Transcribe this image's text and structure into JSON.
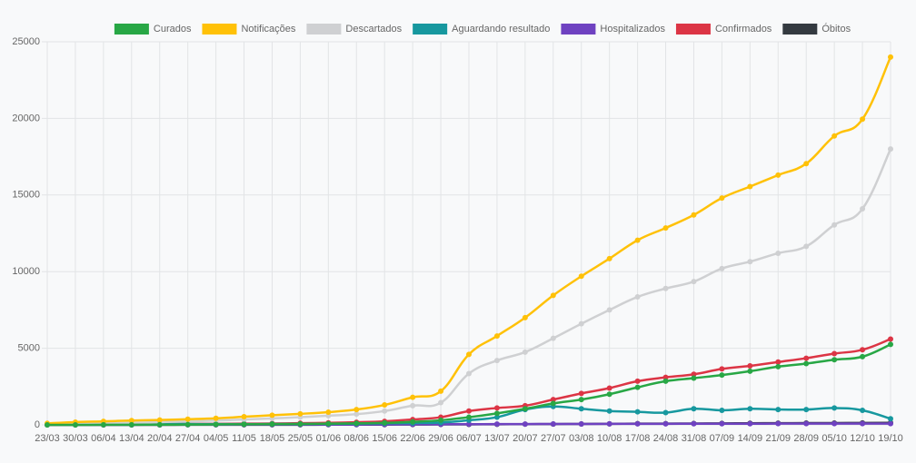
{
  "chart_data": {
    "type": "line",
    "categories": [
      "23/03",
      "30/03",
      "06/04",
      "13/04",
      "20/04",
      "27/04",
      "04/05",
      "11/05",
      "18/05",
      "25/05",
      "01/06",
      "08/06",
      "15/06",
      "22/06",
      "29/06",
      "06/07",
      "13/07",
      "20/07",
      "27/07",
      "03/08",
      "10/08",
      "17/08",
      "24/08",
      "31/08",
      "07/09",
      "14/09",
      "21/09",
      "28/09",
      "05/10",
      "12/10",
      "19/10"
    ],
    "series": [
      {
        "name": "Curados",
        "color": "#28a745",
        "values": [
          0,
          0,
          5,
          10,
          15,
          20,
          30,
          40,
          50,
          60,
          80,
          100,
          130,
          200,
          300,
          500,
          750,
          1050,
          1400,
          1650,
          2000,
          2450,
          2850,
          3050,
          3250,
          3500,
          3800,
          4000,
          4250,
          4450,
          5250
        ]
      },
      {
        "name": "Notificações",
        "color": "#ffc107",
        "values": [
          100,
          180,
          230,
          280,
          320,
          370,
          430,
          530,
          630,
          720,
          830,
          1000,
          1300,
          1800,
          2200,
          4600,
          5800,
          7000,
          8450,
          9700,
          10850,
          12050,
          12850,
          13700,
          14800,
          15550,
          16300,
          17050,
          18850,
          19950,
          24000
        ]
      },
      {
        "name": "Descartados",
        "color": "#cfd0d2",
        "values": [
          50,
          80,
          100,
          130,
          180,
          230,
          280,
          350,
          420,
          500,
          600,
          700,
          900,
          1250,
          1450,
          3350,
          4200,
          4750,
          5650,
          6600,
          7500,
          8350,
          8900,
          9350,
          10200,
          10650,
          11200,
          11650,
          13050,
          14100,
          18000
        ]
      },
      {
        "name": "Aguardando resultado",
        "color": "#17989f",
        "values": [
          20,
          30,
          40,
          50,
          60,
          60,
          50,
          50,
          60,
          60,
          70,
          80,
          100,
          120,
          150,
          300,
          500,
          1000,
          1200,
          1050,
          900,
          850,
          800,
          1050,
          950,
          1050,
          1000,
          1000,
          1100,
          950,
          400
        ]
      },
      {
        "name": "Hospitalizados",
        "color": "#6f42c1",
        "values": [
          5,
          5,
          10,
          10,
          15,
          15,
          15,
          20,
          20,
          20,
          25,
          25,
          30,
          35,
          40,
          45,
          50,
          55,
          60,
          60,
          65,
          70,
          70,
          75,
          75,
          75,
          80,
          80,
          80,
          80,
          80
        ]
      },
      {
        "name": "Confirmados",
        "color": "#dc3545",
        "values": [
          10,
          20,
          30,
          40,
          50,
          60,
          70,
          80,
          90,
          110,
          130,
          170,
          230,
          350,
          500,
          900,
          1100,
          1250,
          1650,
          2050,
          2400,
          2850,
          3100,
          3300,
          3650,
          3850,
          4100,
          4350,
          4650,
          4900,
          5600
        ]
      },
      {
        "name": "Óbitos",
        "color": "#343a40",
        "values": [
          0,
          0,
          1,
          2,
          3,
          4,
          5,
          6,
          8,
          10,
          12,
          15,
          18,
          22,
          26,
          32,
          40,
          48,
          55,
          62,
          70,
          78,
          85,
          92,
          98,
          105,
          110,
          115,
          120,
          125,
          130
        ]
      }
    ],
    "ylim": [
      0,
      25000
    ],
    "yticks": [
      0,
      5000,
      10000,
      15000,
      20000,
      25000
    ],
    "grid": true
  }
}
